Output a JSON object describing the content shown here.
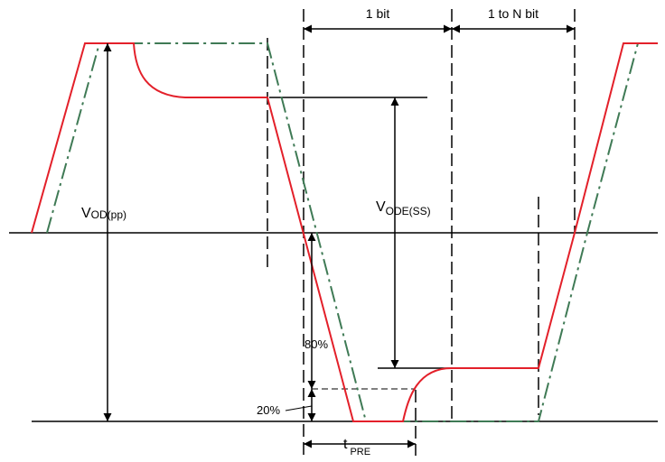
{
  "colors": {
    "red_trace": "#e3202a",
    "green_trace": "#3f7a55",
    "ink": "#000000",
    "background": "#ffffff"
  },
  "labels": {
    "one_bit": "1 bit",
    "one_to_n_bit": "1 to N bit",
    "vod_main": "V",
    "vod_sub": "OD(pp)",
    "vode_main": "V",
    "vode_sub": "ODE(SS)",
    "pct_80": "80%",
    "pct_20": "20%",
    "tpre_main": "t",
    "tpre_sub": "PRE"
  }
}
